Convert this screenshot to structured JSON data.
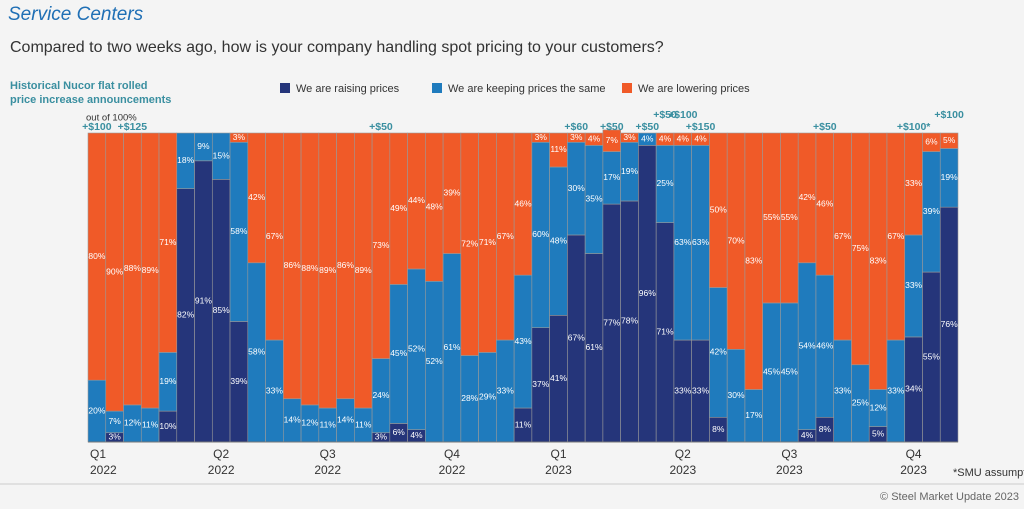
{
  "chart_data": {
    "type": "stacked_bar_100",
    "title": "Service Centers",
    "subtitle": "Compared to two weeks ago, how is your company handling spot pricing to your customers?",
    "note": [
      "Historical Nucor flat rolled",
      "price increase announcements"
    ],
    "ylabel": "out of 100%",
    "footnote": "*SMU assumption",
    "source": "© Steel Market Update 2023",
    "ylim": [
      0,
      100
    ],
    "categories": [
      [
        "Q1",
        "2022"
      ],
      null,
      null,
      null,
      null,
      null,
      null,
      [
        "Q2",
        "2022"
      ],
      null,
      null,
      null,
      null,
      null,
      [
        "Q3",
        "2022"
      ],
      null,
      null,
      null,
      null,
      null,
      null,
      [
        "Q4",
        "2022"
      ],
      null,
      null,
      null,
      null,
      null,
      [
        "Q1",
        "2023"
      ],
      null,
      null,
      null,
      null,
      null,
      null,
      [
        "Q2",
        "2023"
      ],
      null,
      null,
      null,
      null,
      null,
      [
        "Q3",
        "2023"
      ],
      null,
      null,
      null,
      null,
      null,
      null,
      [
        "Q4",
        "2023"
      ],
      null,
      null
    ],
    "price_announcements": [
      "+$100",
      null,
      "+$125",
      null,
      null,
      null,
      null,
      null,
      null,
      null,
      null,
      null,
      null,
      null,
      null,
      null,
      "+$50",
      null,
      null,
      null,
      null,
      null,
      null,
      null,
      null,
      null,
      null,
      "+$60",
      null,
      "+$50",
      null,
      "+$50",
      "+$50",
      "+$100",
      "+$150",
      null,
      null,
      null,
      null,
      null,
      null,
      "+$50",
      null,
      null,
      null,
      null,
      "+$100*",
      null,
      "+$100"
    ],
    "series": [
      {
        "name": "We are raising prices",
        "color": "#25357a",
        "values": [
          0,
          3,
          0,
          0,
          10,
          82,
          91,
          85,
          39,
          0,
          0,
          0,
          0,
          0,
          0,
          0,
          3,
          6,
          4,
          0,
          0,
          0,
          0,
          0,
          11,
          37,
          41,
          67,
          61,
          77,
          78,
          96,
          71,
          33,
          33,
          8,
          0,
          0,
          0,
          0,
          4,
          8,
          0,
          0,
          5,
          0,
          34,
          55,
          76
        ],
        "value_labels": [
          null,
          "3%",
          null,
          null,
          "10%",
          "82%",
          "91%",
          "85%",
          "39%",
          null,
          null,
          null,
          null,
          null,
          null,
          null,
          "3%",
          "6%",
          "4%",
          null,
          null,
          null,
          null,
          null,
          "11%",
          "37%",
          "41%",
          "67%",
          "61%",
          "77%",
          "78%",
          "96%",
          "71%",
          "33%",
          "33%",
          "8%",
          null,
          null,
          null,
          null,
          "4%",
          "8%",
          null,
          null,
          "5%",
          null,
          "34%",
          "55%",
          "76%"
        ]
      },
      {
        "name": "We are keeping prices the same",
        "color": "#1f7bbd",
        "values": [
          20,
          7,
          12,
          11,
          19,
          18,
          9,
          15,
          58,
          58,
          33,
          14,
          12,
          11,
          14,
          11,
          24,
          45,
          52,
          52,
          61,
          28,
          29,
          33,
          43,
          60,
          48,
          30,
          35,
          17,
          19,
          4,
          25,
          63,
          63,
          42,
          30,
          17,
          45,
          45,
          54,
          46,
          33,
          25,
          12,
          33,
          33,
          39,
          19
        ],
        "value_labels": [
          "20%",
          "7%",
          "12%",
          "11%",
          "19%",
          "18%",
          "9%",
          "15%",
          "58%",
          "58%",
          "33%",
          "14%",
          "12%",
          "11%",
          "14%",
          "11%",
          "24%",
          "45%",
          "52%",
          "52%",
          "61%",
          "28%",
          "29%",
          "33%",
          "43%",
          "60%",
          "48%",
          "30%",
          "35%",
          "17%",
          "19%",
          "4%",
          "25%",
          "63%",
          "63%",
          "42%",
          "30%",
          "17%",
          "45%",
          "45%",
          "54%",
          "46%",
          "33%",
          "25%",
          "12%",
          "33%",
          "33%",
          "39%",
          "19%"
        ]
      },
      {
        "name": "We are lowering prices",
        "color": "#f05a28",
        "values": [
          80,
          90,
          88,
          89,
          71,
          0,
          0,
          0,
          3,
          42,
          67,
          86,
          88,
          89,
          86,
          89,
          73,
          49,
          44,
          48,
          39,
          72,
          71,
          67,
          46,
          3,
          11,
          3,
          4,
          7,
          3,
          0,
          4,
          4,
          4,
          50,
          70,
          83,
          55,
          55,
          42,
          46,
          67,
          75,
          83,
          67,
          33,
          6,
          5
        ],
        "value_labels": [
          "80%",
          "90%",
          "88%",
          "89%",
          "71%",
          null,
          null,
          null,
          "3%",
          "42%",
          "67%",
          "86%",
          "88%",
          "89%",
          "86%",
          "89%",
          "73%",
          "49%",
          "44%",
          "48%",
          "39%",
          "72%",
          "71%",
          "67%",
          "46%",
          "3%",
          "11%",
          "3%",
          "4%",
          "7%",
          "3%",
          null,
          "4%",
          "4%",
          "4%",
          "50%",
          "70%",
          "83%",
          "55%",
          "55%",
          "42%",
          "46%",
          "67%",
          "75%",
          "83%",
          "67%",
          "33%",
          "6%",
          "5%"
        ]
      }
    ]
  }
}
